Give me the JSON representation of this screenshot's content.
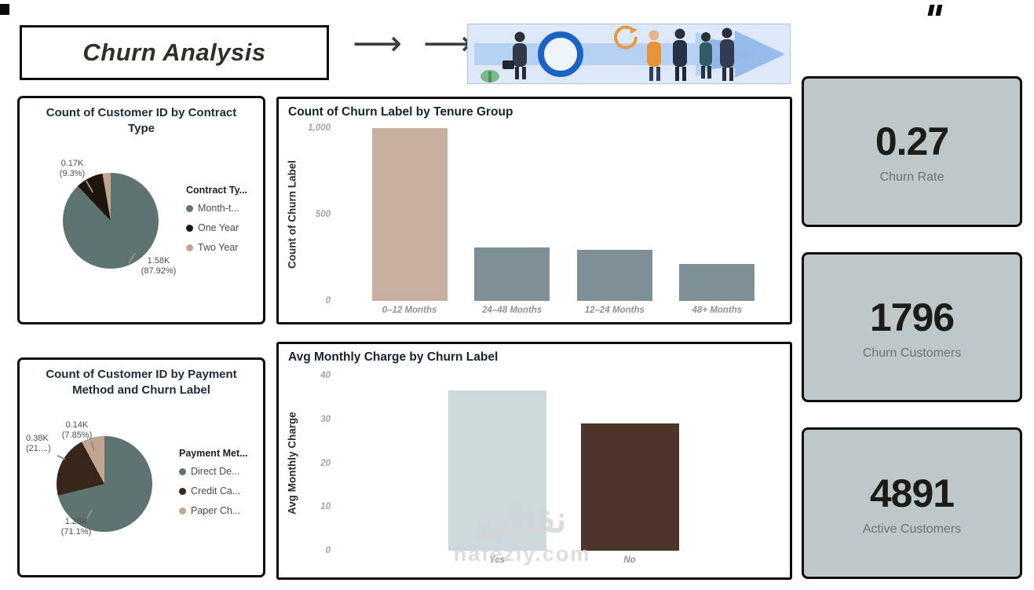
{
  "header": {
    "title": "Churn Analysis",
    "arrow1": "⟶",
    "arrow2": "⟶",
    "illustration": "business-growth-people-illustration"
  },
  "watermark": {
    "arabic": "نفذلي",
    "site": "nafezly.com"
  },
  "kpi_cards": [
    {
      "value": "0.27",
      "label": "Churn Rate"
    },
    {
      "value": "1796",
      "label": "Churn Customers"
    },
    {
      "value": "4891",
      "label": "Active Customers"
    }
  ],
  "chart_data": [
    {
      "type": "pie",
      "title": "Count of Customer ID by Contract Type",
      "legend_title": "Contract Ty...",
      "legend_position": "right",
      "slices": [
        {
          "label": "Month-t...",
          "pct": 87.92,
          "value_label": "1.58K",
          "color": "#5e7471"
        },
        {
          "label": "One Year",
          "pct": 9.3,
          "value_label": "0.17K",
          "color": "#20150e"
        },
        {
          "label": "Two Year",
          "pct": 2.78,
          "value_label": "",
          "color": "#c2a58e"
        }
      ],
      "callouts": [
        {
          "line1": "0.17K",
          "line2": "(9.3%)"
        },
        {
          "line1": "1.58K",
          "line2": "(87.92%)"
        }
      ]
    },
    {
      "type": "bar",
      "title": "Count of Churn Label by Tenure Group",
      "ylabel": "Count of Churn Label",
      "xlabel": "",
      "ymax": 1000,
      "yticks": [
        "1,000",
        "500",
        "0"
      ],
      "grid": false,
      "categories": [
        "0–12 Months",
        "24–48 Months",
        "12–24 Months",
        "48+ Months"
      ],
      "values": [
        1000,
        310,
        295,
        215
      ],
      "colors": [
        "#c8af9f",
        "#7e9096",
        "#7e9096",
        "#7e9096"
      ]
    },
    {
      "type": "pie",
      "title": "Count of Customer ID by Payment Method and Churn Label",
      "legend_title": "Payment Met...",
      "legend_position": "right",
      "slices": [
        {
          "label": "Direct De...",
          "pct": 71.1,
          "value_label": "1.28K",
          "color": "#5e7471"
        },
        {
          "label": "Credit Ca...",
          "pct": 21.0,
          "value_label": "0.38K",
          "color": "#39261b"
        },
        {
          "label": "Paper Ch...",
          "pct": 7.9,
          "value_label": "0.14K",
          "color": "#c2a58e"
        }
      ],
      "callouts": [
        {
          "line1": "0.14K",
          "line2": "(7.85%)"
        },
        {
          "line1": "0.38K",
          "line2": "(21....)"
        },
        {
          "line1": "1.28K",
          "line2": "(71.1%)"
        }
      ]
    },
    {
      "type": "bar",
      "title": "Avg Monthly Charge by Churn Label",
      "ylabel": "Avg Monthly Charge",
      "xlabel": "",
      "ymax": 40,
      "yticks": [
        "40",
        "30",
        "20",
        "10",
        "0"
      ],
      "grid": false,
      "categories": [
        "Yes",
        "No"
      ],
      "values": [
        36.6,
        29
      ],
      "colors": [
        "#cdd8da",
        "#4c352b"
      ]
    }
  ]
}
